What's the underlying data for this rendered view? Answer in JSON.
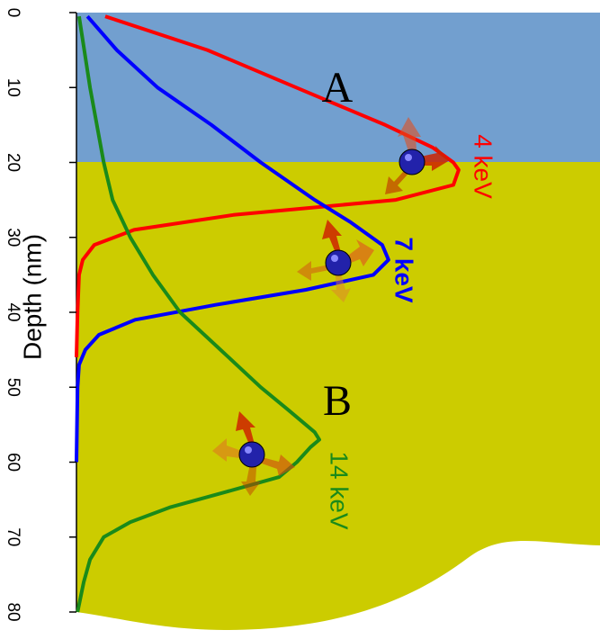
{
  "chart_data": {
    "type": "line",
    "y_label": "Depth (nm)",
    "ylim": [
      0,
      80
    ],
    "yticks": [
      0,
      10,
      20,
      30,
      40,
      50,
      60,
      70,
      80
    ],
    "xlim": [
      0,
      1
    ],
    "annotations": [
      "A",
      "B"
    ],
    "series": [
      {
        "name": "4 keV",
        "color": "#ff0000",
        "x": [
          0.5,
          5,
          10,
          15,
          18,
          20,
          21,
          23,
          25,
          27,
          29,
          31,
          33,
          35,
          40,
          46
        ],
        "values": [
          0.055,
          0.25,
          0.42,
          0.59,
          0.68,
          0.72,
          0.73,
          0.72,
          0.61,
          0.3,
          0.11,
          0.034,
          0.012,
          0.005,
          0.002,
          0
        ]
      },
      {
        "name": "7 keV",
        "color": "#0000ff",
        "x": [
          0.5,
          5,
          10,
          15,
          20,
          25,
          28,
          31,
          33,
          35,
          37,
          39,
          41,
          43,
          45,
          47,
          50,
          60
        ],
        "values": [
          0.021,
          0.077,
          0.155,
          0.258,
          0.352,
          0.455,
          0.524,
          0.584,
          0.596,
          0.567,
          0.438,
          0.266,
          0.112,
          0.043,
          0.017,
          0.005,
          0.002,
          0
        ]
      },
      {
        "name": "14 keV",
        "color": "#1a8a1a",
        "x": [
          0.5,
          10,
          20,
          25,
          30,
          35,
          40,
          45,
          50,
          53,
          56,
          57,
          58,
          60,
          62,
          64,
          66,
          68,
          70,
          73,
          76,
          80
        ],
        "values": [
          0.005,
          0.026,
          0.052,
          0.069,
          0.103,
          0.146,
          0.198,
          0.275,
          0.352,
          0.404,
          0.455,
          0.464,
          0.447,
          0.421,
          0.387,
          0.284,
          0.18,
          0.103,
          0.052,
          0.026,
          0.014,
          0.002
        ]
      }
    ]
  }
}
